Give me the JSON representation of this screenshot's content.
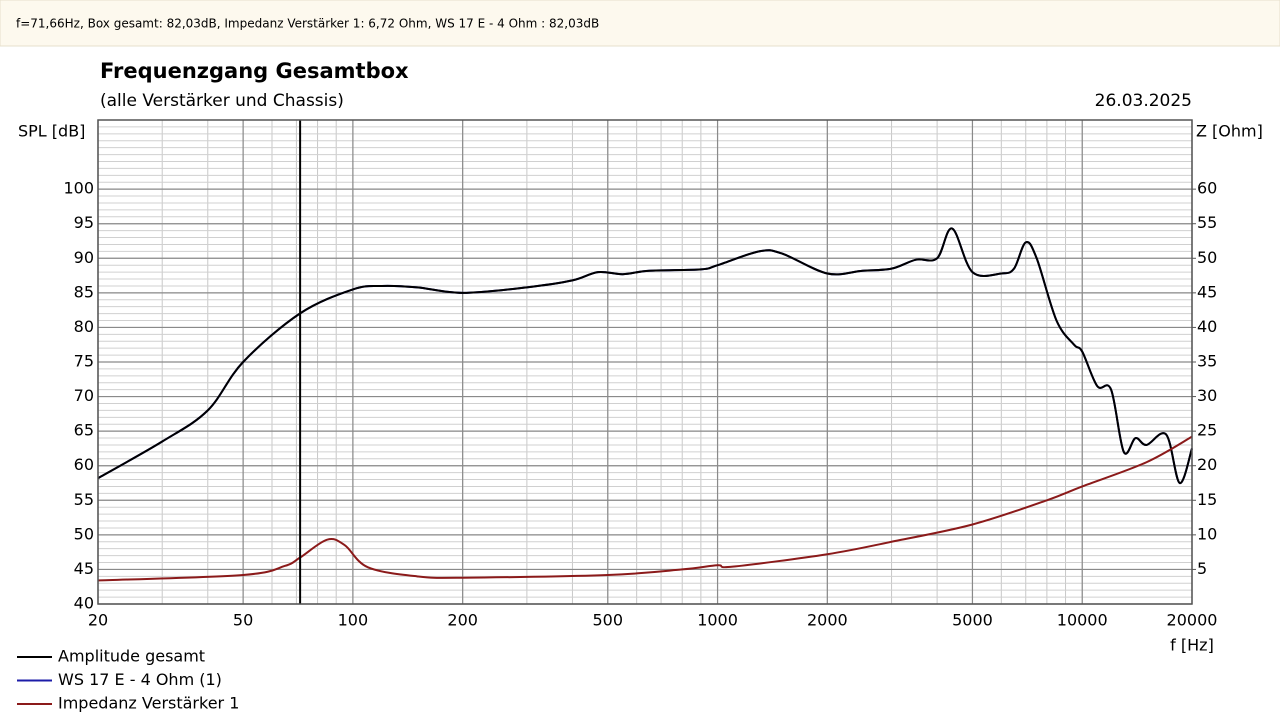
{
  "info_bar": "f=71,66Hz, Box gesamt: 82,03dB, Impedanz Verstärker 1: 6,72 Ohm, WS 17 E - 4 Ohm  : 82,03dB",
  "chart_data": {
    "type": "line",
    "title": "Frequenzgang Gesamtbox",
    "subtitle": "(alle Verstärker und Chassis)",
    "date": "26.03.2025",
    "y_label": "SPL [dB]",
    "y2_label": "Z [Ohm]",
    "x_label": "f [Hz]",
    "log_x": true,
    "grid": true,
    "xlim": [
      20,
      20000
    ],
    "xticks": [
      20,
      50,
      100,
      200,
      500,
      1000,
      2000,
      5000,
      10000,
      20000
    ],
    "ylim": [
      40,
      110
    ],
    "yticks": [
      40,
      45,
      50,
      55,
      60,
      65,
      70,
      75,
      80,
      85,
      90,
      95,
      100
    ],
    "y2lim": [
      0,
      70
    ],
    "y2ticks": [
      5,
      10,
      15,
      20,
      25,
      30,
      35,
      40,
      45,
      50,
      55,
      60
    ],
    "cursor": 71.66,
    "series": [
      {
        "name": "WS 17 E - 4 Ohm   (1)",
        "color": "#1c1ca8",
        "x": [
          20,
          30,
          40,
          50,
          71.66,
          100,
          120,
          150,
          200,
          300,
          400,
          470,
          550,
          650,
          900,
          1000,
          1300,
          1500,
          2000,
          2500,
          3000,
          3500,
          4000,
          4400,
          5000,
          6000,
          6500,
          7000,
          7500,
          8500,
          9500,
          10000,
          11000,
          12000,
          13000,
          14000,
          15000,
          17000,
          18500,
          20000
        ],
        "values": [
          58.2,
          63.5,
          68,
          75,
          82.03,
          85.5,
          86,
          85.8,
          85,
          85.8,
          86.8,
          88,
          87.7,
          88.2,
          88.4,
          89,
          91,
          90.7,
          87.8,
          88.2,
          88.5,
          89.8,
          90,
          94.3,
          88,
          87.8,
          88.5,
          92.3,
          90,
          81,
          77.5,
          76.5,
          71.5,
          71,
          62,
          64,
          63,
          64.5,
          57.5,
          62.5
        ]
      },
      {
        "name": "Amplitude gesamt",
        "color": "#000000",
        "x": [
          20,
          30,
          40,
          50,
          71.66,
          100,
          120,
          150,
          200,
          300,
          400,
          470,
          550,
          650,
          900,
          1000,
          1300,
          1500,
          2000,
          2500,
          3000,
          3500,
          4000,
          4400,
          5000,
          6000,
          6500,
          7000,
          7500,
          8500,
          9500,
          10000,
          11000,
          12000,
          13000,
          14000,
          15000,
          17000,
          18500,
          20000
        ],
        "values": [
          58.2,
          63.5,
          68,
          75,
          82.03,
          85.5,
          86,
          85.8,
          85,
          85.8,
          86.8,
          88,
          87.7,
          88.2,
          88.4,
          89,
          91,
          90.7,
          87.8,
          88.2,
          88.5,
          89.8,
          90,
          94.3,
          88,
          87.8,
          88.5,
          92.3,
          90,
          81,
          77.5,
          76.5,
          71.5,
          71,
          62,
          64,
          63,
          64.5,
          57.5,
          62.5
        ]
      },
      {
        "name": "Impedanz Verstärker 1",
        "color": "#8b1a1a",
        "axis": "y2",
        "x": [
          20,
          50,
          65,
          71.66,
          85,
          95,
          110,
          150,
          200,
          500,
          800,
          1000,
          1100,
          2000,
          3000,
          5000,
          8000,
          10000,
          15000,
          20000
        ],
        "values": [
          3.4,
          4.2,
          5.5,
          6.72,
          9.3,
          8.5,
          5.3,
          4,
          3.8,
          4.2,
          5,
          5.6,
          5.4,
          7.2,
          9,
          11.5,
          15,
          17,
          20.5,
          24.2
        ]
      }
    ]
  }
}
